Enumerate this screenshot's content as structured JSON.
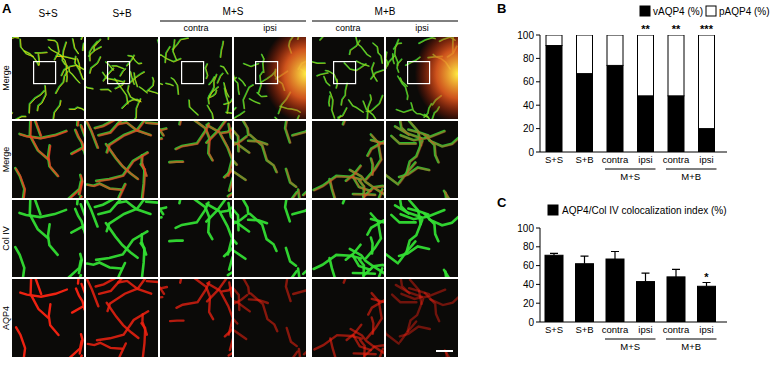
{
  "panel_a": {
    "label": "A",
    "columns": [
      "S+S",
      "S+B",
      "contra",
      "ipsi",
      "contra",
      "ipsi"
    ],
    "column_groups": [
      null,
      null,
      "M+S",
      "M+S",
      "M+B",
      "M+B"
    ],
    "rows": [
      "Merge",
      "Merge",
      "Col IV",
      "AQP4"
    ]
  },
  "chart_data": [
    {
      "type": "bar",
      "title": "B",
      "categories": [
        "S+S",
        "S+B",
        "contra",
        "ipsi",
        "contra",
        "ipsi"
      ],
      "group_labels": [
        null,
        null,
        "M+S",
        "M+S",
        "M+B",
        "M+B"
      ],
      "annotations": [
        null,
        null,
        null,
        "**",
        "**",
        "***"
      ],
      "series": [
        {
          "name": "vAQP4 (%)",
          "color": "#000000",
          "values": [
            91,
            67,
            74,
            48,
            48,
            20
          ]
        },
        {
          "name": "pAQP4 (%)",
          "color": "#ffffff",
          "values": [
            9,
            33,
            26,
            52,
            52,
            80
          ]
        }
      ],
      "ylim": [
        0,
        100
      ],
      "yticks": [
        0,
        20,
        40,
        60,
        80,
        100
      ],
      "stacked": true,
      "legend": "top-right"
    },
    {
      "type": "bar",
      "title": "C",
      "categories": [
        "S+S",
        "S+B",
        "contra",
        "ipsi",
        "contra",
        "ipsi"
      ],
      "group_labels": [
        null,
        null,
        "M+S",
        "M+S",
        "M+B",
        "M+B"
      ],
      "annotations": [
        null,
        null,
        null,
        null,
        null,
        "*"
      ],
      "series": [
        {
          "name": "AQP4/Col IV colocalization index (%)",
          "color": "#000000",
          "values": [
            71,
            62,
            67,
            43,
            48,
            38
          ],
          "errors": [
            2,
            8,
            8,
            9,
            8,
            4
          ]
        }
      ],
      "ylim": [
        0,
        100
      ],
      "yticks": [
        0,
        20,
        40,
        60,
        80,
        100
      ],
      "legend": "top-left"
    }
  ]
}
